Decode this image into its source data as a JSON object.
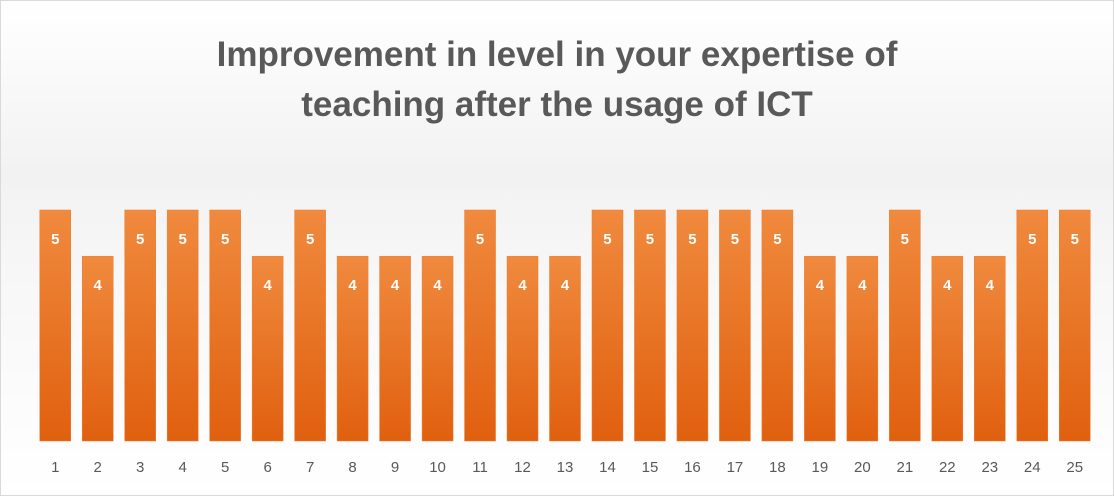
{
  "chart_data": {
    "type": "bar",
    "title": "Improvement in level in your expertise of teaching after the usage of ICT",
    "categories": [
      "1",
      "2",
      "3",
      "4",
      "5",
      "6",
      "7",
      "8",
      "9",
      "10",
      "11",
      "12",
      "13",
      "14",
      "15",
      "16",
      "17",
      "18",
      "19",
      "20",
      "21",
      "22",
      "23",
      "24",
      "25"
    ],
    "values": [
      5,
      4,
      5,
      5,
      5,
      4,
      5,
      4,
      4,
      4,
      5,
      4,
      4,
      5,
      5,
      5,
      5,
      5,
      4,
      4,
      5,
      4,
      4,
      5,
      5
    ],
    "color": "#ed7d31",
    "ylim": [
      0,
      5
    ]
  }
}
